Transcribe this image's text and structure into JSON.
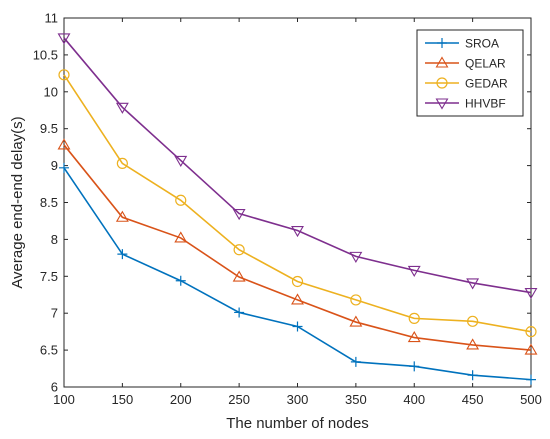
{
  "chart_data": {
    "type": "line",
    "title": "",
    "xlabel": "The number of nodes",
    "ylabel": "Average end-end delay(s)",
    "x": [
      100,
      150,
      200,
      250,
      300,
      350,
      400,
      450,
      500
    ],
    "xlim": [
      100,
      500
    ],
    "ylim": [
      6,
      11
    ],
    "xticks": [
      "100",
      "150",
      "200",
      "250",
      "300",
      "350",
      "400",
      "450",
      "500"
    ],
    "yticks": [
      "6",
      "6.5",
      "7",
      "7.5",
      "8",
      "8.5",
      "9",
      "9.5",
      "10",
      "10.5",
      "11"
    ],
    "grid": false,
    "legend_position": "top-right",
    "series": [
      {
        "name": "SROA",
        "color": "#0072BD",
        "marker": "plus",
        "values": [
          8.97,
          7.8,
          7.44,
          7.01,
          6.82,
          6.34,
          6.28,
          6.16,
          6.1
        ]
      },
      {
        "name": "QELAR",
        "color": "#D95319",
        "marker": "triangle-up",
        "values": [
          9.28,
          8.3,
          8.02,
          7.49,
          7.18,
          6.88,
          6.67,
          6.57,
          6.5
        ]
      },
      {
        "name": "GEDAR",
        "color": "#EDB120",
        "marker": "circle",
        "values": [
          10.23,
          9.03,
          8.53,
          7.86,
          7.43,
          7.18,
          6.93,
          6.89,
          6.75
        ]
      },
      {
        "name": "HHVBF",
        "color": "#7E2F8E",
        "marker": "triangle-down",
        "values": [
          10.73,
          9.79,
          9.07,
          8.35,
          8.12,
          7.77,
          7.58,
          7.41,
          7.28
        ]
      }
    ]
  }
}
